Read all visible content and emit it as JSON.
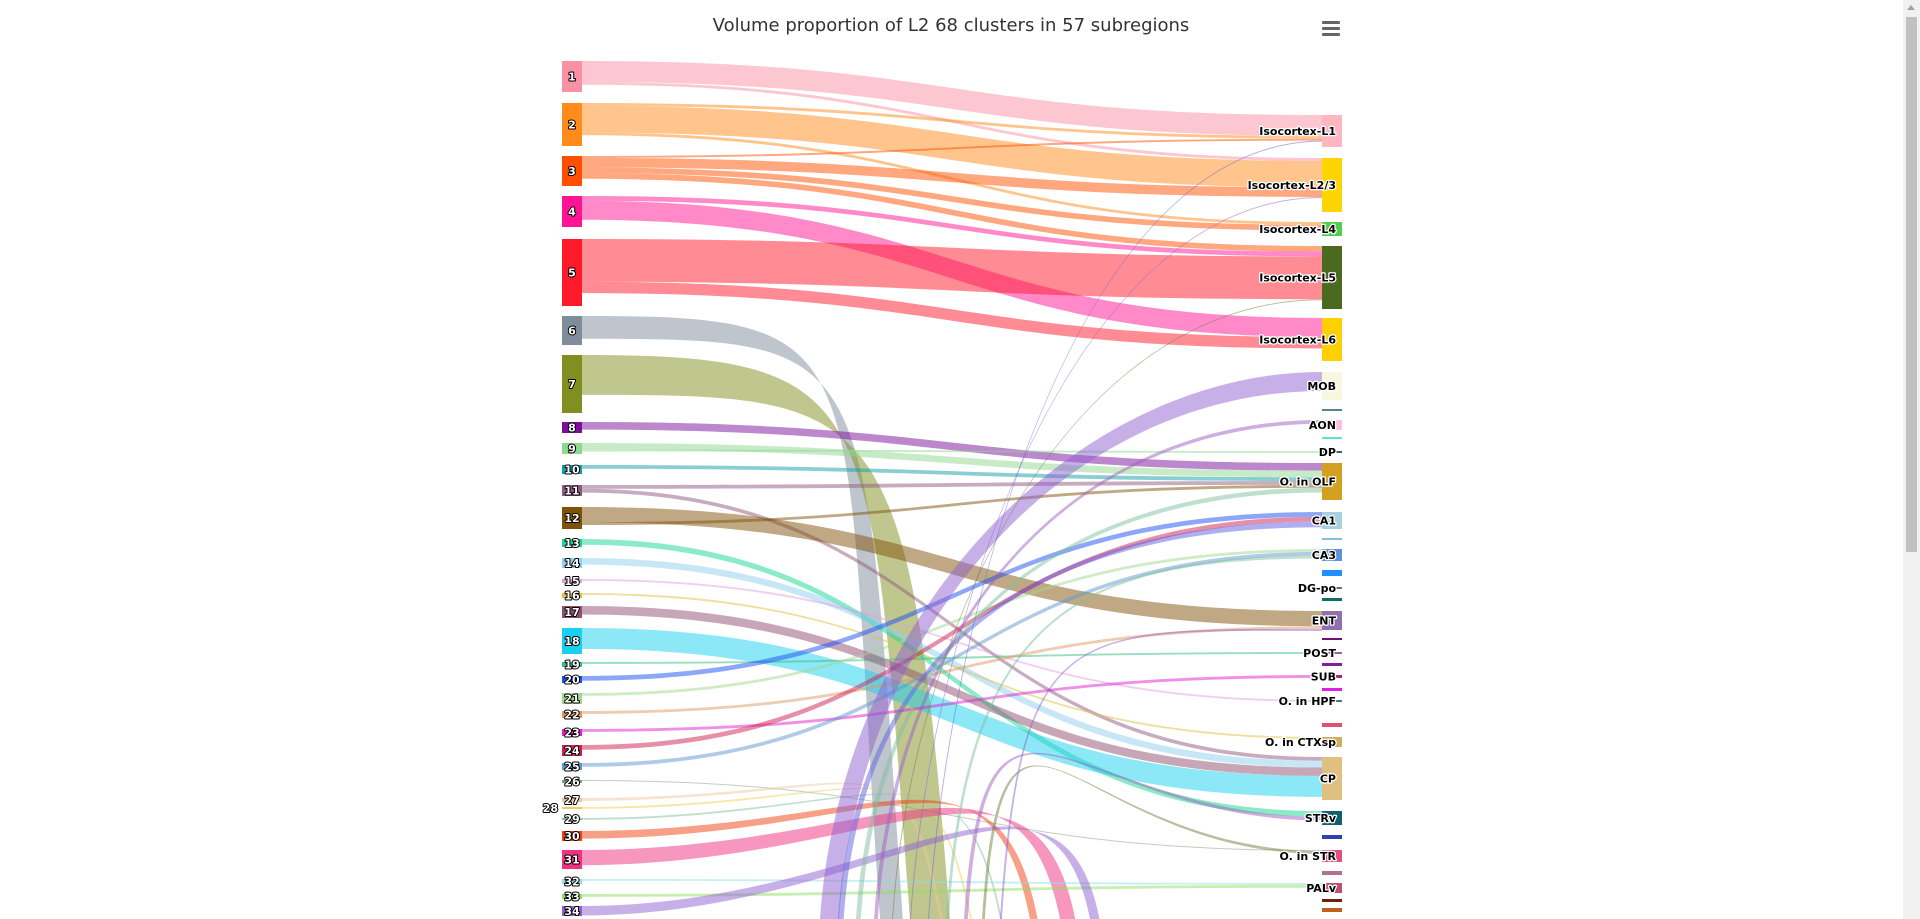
{
  "chart_data": {
    "type": "sankey",
    "title": "Volume proportion of L2 68 clusters in 57 subregions",
    "menu_icon": "hamburger-menu-icon",
    "link_opacity": 0.5,
    "source_nodes": [
      {
        "name": "1",
        "color": "#f990a3"
      },
      {
        "name": "2",
        "color": "#ff8c1a"
      },
      {
        "name": "3",
        "color": "#ff4f00"
      },
      {
        "name": "4",
        "color": "#ff1493"
      },
      {
        "name": "5",
        "color": "#ff1a2a"
      },
      {
        "name": "6",
        "color": "#7f8c99"
      },
      {
        "name": "7",
        "color": "#7f9020"
      },
      {
        "name": "8",
        "color": "#7a1099"
      },
      {
        "name": "9",
        "color": "#90d890"
      },
      {
        "name": "10",
        "color": "#10a0a8"
      },
      {
        "name": "11",
        "color": "#8f5a80"
      },
      {
        "name": "12",
        "color": "#7f5208"
      },
      {
        "name": "13",
        "color": "#1ad890"
      },
      {
        "name": "14",
        "color": "#90d0f0"
      },
      {
        "name": "15",
        "color": "#e0a0e0"
      },
      {
        "name": "16",
        "color": "#e0c040"
      },
      {
        "name": "17",
        "color": "#8f5070"
      },
      {
        "name": "18",
        "color": "#1ad0f0"
      },
      {
        "name": "19",
        "color": "#30c080"
      },
      {
        "name": "20",
        "color": "#1a50f0"
      },
      {
        "name": "21",
        "color": "#a0d890"
      },
      {
        "name": "22",
        "color": "#e09860"
      },
      {
        "name": "23",
        "color": "#e020d0"
      },
      {
        "name": "24",
        "color": "#d02050"
      },
      {
        "name": "25",
        "color": "#6098d0"
      },
      {
        "name": "26",
        "color": "#80a080"
      },
      {
        "name": "27",
        "color": "#f0c8a0"
      },
      {
        "name": "28",
        "color": "#f0d050"
      },
      {
        "name": "29",
        "color": "#80c0a0"
      },
      {
        "name": "30",
        "color": "#f04010"
      },
      {
        "name": "31",
        "color": "#f03080"
      },
      {
        "name": "32",
        "color": "#90e0e0"
      },
      {
        "name": "33",
        "color": "#90e060"
      },
      {
        "name": "34",
        "color": "#9060d0"
      }
    ],
    "target_nodes": [
      {
        "name": "Isocortex-L1",
        "color": "#ffb6c1"
      },
      {
        "name": "Isocortex-L2/3",
        "color": "#ffd400"
      },
      {
        "name": "Isocortex-L4",
        "color": "#50d050"
      },
      {
        "name": "Isocortex-L5",
        "color": "#4a6a20"
      },
      {
        "name": "Isocortex-L6",
        "color": "#ffd000"
      },
      {
        "name": "MOB",
        "color": "#f8f8e0"
      },
      {
        "name": "",
        "color": "#508890"
      },
      {
        "name": "AON",
        "color": "#ffc0e0"
      },
      {
        "name": "",
        "color": "#60e0d0"
      },
      {
        "name": "DP",
        "color": "#406060"
      },
      {
        "name": "O. in OLF",
        "color": "#d4a020"
      },
      {
        "name": "CA1",
        "color": "#a8d0e0"
      },
      {
        "name": "",
        "color": "#80c0e0"
      },
      {
        "name": "CA3",
        "color": "#6090e0"
      },
      {
        "name": "",
        "color": "#2090ff"
      },
      {
        "name": "DG-po",
        "color": "#607080"
      },
      {
        "name": "",
        "color": "#107060"
      },
      {
        "name": "ENT",
        "color": "#9070b0"
      },
      {
        "name": "",
        "color": "#701070"
      },
      {
        "name": "POST",
        "color": "#a060a0"
      },
      {
        "name": "",
        "color": "#8020a0"
      },
      {
        "name": "SUB",
        "color": "#b02080"
      },
      {
        "name": "",
        "color": "#e020e0"
      },
      {
        "name": "O. in HPF",
        "color": "#507080"
      },
      {
        "name": "",
        "color": "#e05070"
      },
      {
        "name": "O. in CTXsp",
        "color": "#d0b060"
      },
      {
        "name": "CP",
        "color": "#e0c080"
      },
      {
        "name": "STRv",
        "color": "#106070"
      },
      {
        "name": "",
        "color": "#3040b0"
      },
      {
        "name": "O. in STR",
        "color": "#e05080"
      },
      {
        "name": "",
        "color": "#b07090"
      },
      {
        "name": "PALv",
        "color": "#c05070"
      },
      {
        "name": "",
        "color": "#702010"
      },
      {
        "name": "",
        "color": "#c06020"
      }
    ],
    "links": [
      {
        "from": "1",
        "to": "Isocortex-L1",
        "value": 22
      },
      {
        "from": "1",
        "to": "Isocortex-L2/3",
        "value": 3
      },
      {
        "from": "2",
        "to": "Isocortex-L1",
        "value": 3
      },
      {
        "from": "2",
        "to": "Isocortex-L2/3",
        "value": 28
      },
      {
        "from": "2",
        "to": "Isocortex-L4",
        "value": 3
      },
      {
        "from": "3",
        "to": "Isocortex-L1",
        "value": 2
      },
      {
        "from": "3",
        "to": "Isocortex-L2/3",
        "value": 10
      },
      {
        "from": "3",
        "to": "Isocortex-L4",
        "value": 6
      },
      {
        "from": "3",
        "to": "Isocortex-L5",
        "value": 6
      },
      {
        "from": "4",
        "to": "Isocortex-L5",
        "value": 5
      },
      {
        "from": "4",
        "to": "Isocortex-L6",
        "value": 20
      },
      {
        "from": "5",
        "to": "Isocortex-L5",
        "value": 45
      },
      {
        "from": "5",
        "to": "Isocortex-L6",
        "value": 12
      },
      {
        "from": "6",
        "to": null,
        "value": 24
      },
      {
        "from": "7",
        "to": null,
        "value": 42
      },
      {
        "from": "8",
        "to": "O. in OLF",
        "value": 8
      },
      {
        "from": "9",
        "to": "O. in OLF",
        "value": 7
      },
      {
        "from": "9",
        "to": "DP",
        "value": 2
      },
      {
        "from": "10",
        "to": "O. in OLF",
        "value": 4
      },
      {
        "from": "11",
        "to": "O. in OLF",
        "value": 4
      },
      {
        "from": "11",
        "to": "CP",
        "value": 4
      },
      {
        "from": "12",
        "to": "ENT",
        "value": 16
      },
      {
        "from": "12",
        "to": "O. in OLF",
        "value": 3
      },
      {
        "from": "13",
        "to": "STRv",
        "value": 6
      },
      {
        "from": "14",
        "to": "CP",
        "value": 7
      },
      {
        "from": "15",
        "to": "O. in HPF",
        "value": 2
      },
      {
        "from": "16",
        "to": "O. in CTXsp",
        "value": 2
      },
      {
        "from": "17",
        "to": "CP",
        "value": 9
      },
      {
        "from": "18",
        "to": "CP",
        "value": 22
      },
      {
        "from": "19",
        "to": "POST",
        "value": 2
      },
      {
        "from": "20",
        "to": "CA1",
        "value": 5
      },
      {
        "from": "21",
        "to": "CA3",
        "value": 3
      },
      {
        "from": "22",
        "to": "ENT",
        "value": 3
      },
      {
        "from": "23",
        "to": "SUB",
        "value": 3
      },
      {
        "from": "24",
        "to": "CA1",
        "value": 5
      },
      {
        "from": "25",
        "to": "CA3",
        "value": 4
      },
      {
        "from": "26",
        "to": "O. in STR",
        "value": 1
      },
      {
        "from": "27",
        "to": null,
        "value": 3
      },
      {
        "from": "28",
        "to": null,
        "value": 2
      },
      {
        "from": "29",
        "to": null,
        "value": 2
      },
      {
        "from": "30",
        "to": null,
        "value": 8
      },
      {
        "from": "31",
        "to": null,
        "value": 16
      },
      {
        "from": "32",
        "to": "PALv",
        "value": 2
      },
      {
        "from": "33",
        "to": "PALv",
        "value": 3
      },
      {
        "from": "34",
        "to": null,
        "value": 10
      },
      {
        "from": null,
        "to": "MOB",
        "value": 20
      },
      {
        "from": null,
        "to": "CA1",
        "value": 6
      },
      {
        "from": null,
        "to": "O. in OLF",
        "value": 5
      },
      {
        "from": null,
        "to": "AON",
        "value": 4
      },
      {
        "from": null,
        "to": "Isocortex-L5",
        "value": 1
      },
      {
        "from": null,
        "to": "Isocortex-L2/3",
        "value": 1
      },
      {
        "from": null,
        "to": "Isocortex-L1",
        "value": 1
      },
      {
        "from": null,
        "to": "CA3",
        "value": 3
      },
      {
        "from": null,
        "to": "STRv",
        "value": 4
      },
      {
        "from": null,
        "to": "O. in STR",
        "value": 3
      },
      {
        "from": null,
        "to": "ENT",
        "value": 2
      }
    ]
  }
}
